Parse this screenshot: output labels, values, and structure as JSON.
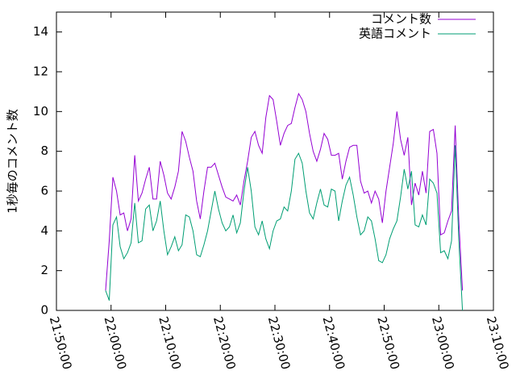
{
  "chart_data": {
    "type": "line",
    "ylabel": "1秒毎のコメント数",
    "x": [
      "21:59:00",
      "21:59:40",
      "22:00:20",
      "22:01:00",
      "22:01:40",
      "22:02:20",
      "22:03:00",
      "22:03:40",
      "22:04:20",
      "22:05:00",
      "22:05:40",
      "22:06:20",
      "22:07:00",
      "22:07:40",
      "22:08:20",
      "22:09:00",
      "22:09:40",
      "22:10:20",
      "22:11:00",
      "22:11:40",
      "22:12:20",
      "22:13:00",
      "22:13:40",
      "22:14:20",
      "22:15:00",
      "22:15:40",
      "22:16:20",
      "22:17:00",
      "22:17:40",
      "22:18:20",
      "22:19:00",
      "22:19:40",
      "22:20:20",
      "22:21:00",
      "22:21:40",
      "22:22:20",
      "22:23:00",
      "22:23:40",
      "22:24:20",
      "22:25:00",
      "22:25:40",
      "22:26:20",
      "22:27:00",
      "22:27:40",
      "22:28:20",
      "22:29:00",
      "22:29:40",
      "22:30:20",
      "22:31:00",
      "22:31:40",
      "22:32:20",
      "22:33:00",
      "22:33:40",
      "22:34:20",
      "22:35:00",
      "22:35:40",
      "22:36:20",
      "22:37:00",
      "22:37:40",
      "22:38:20",
      "22:39:00",
      "22:39:40",
      "22:40:20",
      "22:41:00",
      "22:41:40",
      "22:42:20",
      "22:43:00",
      "22:43:40",
      "22:44:20",
      "22:45:00",
      "22:45:40",
      "22:46:20",
      "22:47:00",
      "22:47:40",
      "22:48:20",
      "22:49:00",
      "22:49:40",
      "22:50:20",
      "22:51:00",
      "22:51:40",
      "22:52:20",
      "22:53:00",
      "22:53:40",
      "22:54:20",
      "22:55:00",
      "22:55:40",
      "22:56:20",
      "22:57:00",
      "22:57:40",
      "22:58:20",
      "22:59:00",
      "22:59:40",
      "23:00:20",
      "23:01:00",
      "23:01:40",
      "23:02:20",
      "23:03:00",
      "23:03:40",
      "23:04:20"
    ],
    "series": [
      {
        "name": "コメント数",
        "color": "#9400d3",
        "values": [
          1.0,
          3.5,
          6.7,
          6.0,
          4.8,
          4.9,
          4.0,
          4.6,
          7.8,
          5.5,
          5.9,
          6.6,
          7.2,
          5.6,
          5.6,
          7.5,
          6.8,
          5.9,
          5.6,
          6.2,
          7.0,
          9.0,
          8.5,
          7.7,
          7.0,
          5.5,
          4.6,
          6.0,
          7.2,
          7.2,
          7.4,
          6.8,
          6.2,
          5.7,
          5.6,
          5.5,
          5.8,
          5.3,
          6.5,
          7.5,
          8.7,
          9.0,
          8.3,
          7.9,
          9.7,
          10.8,
          10.6,
          9.5,
          8.3,
          8.9,
          9.3,
          9.4,
          10.2,
          10.9,
          10.6,
          10.0,
          8.9,
          8.0,
          7.5,
          8.1,
          8.9,
          8.6,
          7.8,
          7.8,
          7.9,
          6.6,
          7.5,
          8.2,
          8.3,
          8.3,
          6.5,
          5.9,
          6.0,
          5.4,
          6.0,
          5.6,
          4.4,
          6.0,
          7.2,
          8.4,
          10.0,
          8.6,
          7.8,
          8.7,
          5.3,
          6.4,
          5.8,
          7.0,
          5.9,
          9.0,
          9.1,
          7.9,
          3.8,
          3.9,
          4.5,
          5.0,
          9.3,
          4.5,
          1.0
        ]
      },
      {
        "name": "英語コメント",
        "color": "#009e73",
        "values": [
          1.0,
          0.5,
          4.3,
          4.7,
          3.2,
          2.6,
          2.9,
          3.4,
          5.4,
          3.4,
          3.5,
          5.1,
          5.3,
          4.0,
          4.5,
          5.5,
          4.0,
          2.8,
          3.2,
          3.7,
          3.0,
          3.3,
          4.8,
          4.7,
          4.0,
          2.8,
          2.7,
          3.3,
          4.0,
          5.0,
          6.0,
          5.1,
          4.4,
          4.0,
          4.2,
          4.8,
          3.9,
          4.4,
          6.0,
          7.2,
          6.0,
          4.2,
          3.8,
          4.5,
          3.6,
          3.1,
          4.0,
          4.5,
          4.6,
          5.2,
          5.0,
          6.0,
          7.6,
          7.9,
          7.4,
          6.0,
          4.9,
          4.6,
          5.4,
          6.1,
          5.3,
          5.2,
          6.1,
          6.0,
          4.5,
          5.5,
          6.3,
          6.7,
          5.8,
          4.7,
          3.8,
          4.0,
          4.7,
          4.5,
          3.6,
          2.5,
          2.4,
          2.8,
          3.6,
          4.1,
          4.5,
          5.7,
          7.1,
          6.1,
          7.0,
          4.3,
          4.2,
          4.8,
          4.3,
          6.6,
          6.4,
          5.9,
          2.9,
          3.0,
          2.6,
          3.5,
          8.3,
          3.5,
          0.0
        ]
      }
    ],
    "xlim": [
      "21:50:00",
      "23:10:00"
    ],
    "xticks": [
      "21:50:00",
      "22:00:00",
      "22:10:00",
      "22:20:00",
      "22:30:00",
      "22:40:00",
      "22:50:00",
      "23:00:00",
      "23:10:00"
    ],
    "ylim": [
      0,
      15
    ],
    "yticks": [
      0,
      2,
      4,
      6,
      8,
      10,
      12,
      14
    ],
    "legend": "top-right"
  }
}
